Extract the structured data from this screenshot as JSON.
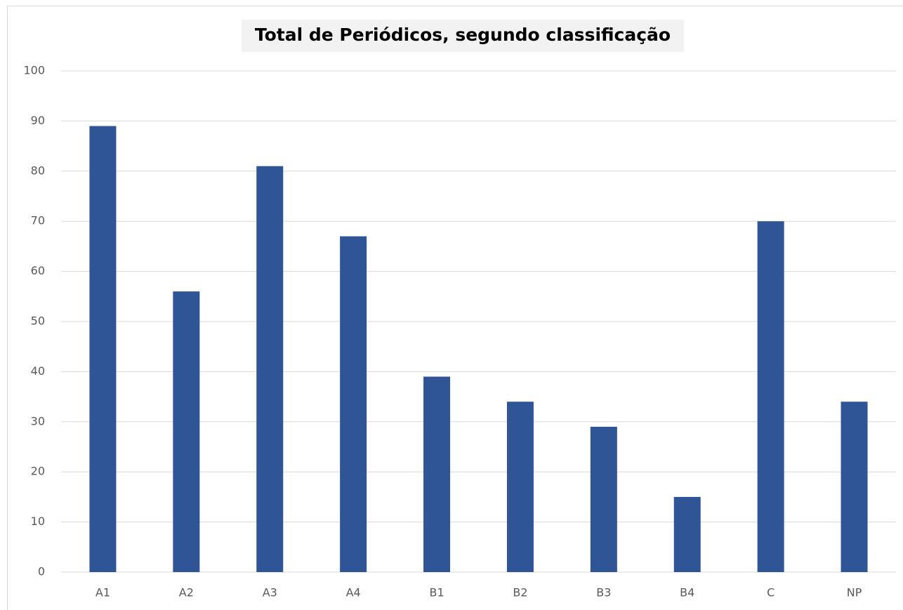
{
  "chart_data": {
    "type": "bar",
    "title": "Total de Periódicos, segundo classificação",
    "categories": [
      "A1",
      "A2",
      "A3",
      "A4",
      "B1",
      "B2",
      "B3",
      "B4",
      "C",
      "NP"
    ],
    "values": [
      89,
      56,
      81,
      67,
      39,
      34,
      29,
      15,
      70,
      34
    ],
    "color": "#2f5597",
    "ylim": [
      0,
      100
    ],
    "yticks": [
      0,
      10,
      20,
      30,
      40,
      50,
      60,
      70,
      80,
      90,
      100
    ],
    "grid": true
  }
}
